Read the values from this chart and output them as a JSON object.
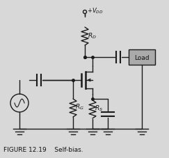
{
  "title": "FIGURE 12.19    Self-bias.",
  "background_color": "#d8d8d8",
  "line_color": "#1a1a1a",
  "component_color": "#1a1a1a",
  "load_box_color": "#b0b0b0",
  "load_text": "Load",
  "vdd_label": "+V_DD",
  "rd_label": "R_D",
  "rg_label": "R_G",
  "rs_label": "R_S",
  "fig_width": 2.43,
  "fig_height": 2.27,
  "dpi": 100
}
